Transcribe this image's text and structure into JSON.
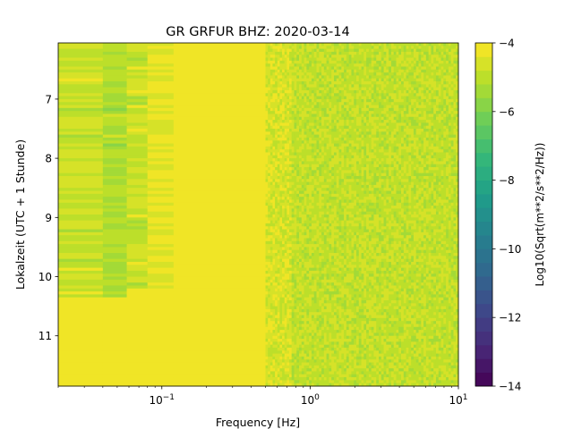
{
  "chart_data": {
    "type": "heatmap",
    "title": "GR GRFUR  BHZ: 2020-03-14",
    "xlabel": "Frequency [Hz]",
    "ylabel": "Lokalzeit (UTC + 1 Stunde)",
    "xscale": "log",
    "xlim": [
      0.02,
      10
    ],
    "ylim": [
      6.05,
      11.85
    ],
    "y_inverted": true,
    "x_ticks": [
      {
        "value": 0.1,
        "base": "10",
        "exp": "−1"
      },
      {
        "value": 1,
        "base": "10",
        "exp": "0"
      },
      {
        "value": 10,
        "base": "10",
        "exp": "1"
      }
    ],
    "y_ticks": [
      {
        "value": 7,
        "label": "7"
      },
      {
        "value": 8,
        "label": "8"
      },
      {
        "value": 9,
        "label": "9"
      },
      {
        "value": 10,
        "label": "10"
      },
      {
        "value": 11,
        "label": "11"
      }
    ],
    "colorbar": {
      "label": "Log10(Sqrt(m**2/s**2/Hz))",
      "range": [
        -14,
        -4
      ],
      "levels": 25,
      "colormap": "viridis",
      "ticks": [
        {
          "value": -4,
          "label": "−4"
        },
        {
          "value": -6,
          "label": "−6"
        },
        {
          "value": -8,
          "label": "−8"
        },
        {
          "value": -10,
          "label": "−10"
        },
        {
          "value": -12,
          "label": "−12"
        },
        {
          "value": -14,
          "label": "−14"
        }
      ]
    },
    "spectrogram_bands": [
      {
        "f_min": 0.02,
        "f_max": 0.04,
        "value_early": -4.8,
        "value_late": -4.0
      },
      {
        "f_min": 0.04,
        "f_max": 0.058,
        "value_early": -5.2,
        "value_late": -4.0
      },
      {
        "f_min": 0.058,
        "f_max": 0.08,
        "value_early": -4.8,
        "value_late": -4.0
      },
      {
        "f_min": 0.08,
        "f_max": 0.12,
        "value_early": -4.3,
        "value_late": -4.0
      },
      {
        "f_min": 0.12,
        "f_max": 0.5,
        "value_early": -4.0,
        "value_late": -4.0
      },
      {
        "f_min": 0.5,
        "f_max": 0.75,
        "value_early": -4.6,
        "value_late": -4.6
      },
      {
        "f_min": 0.75,
        "f_max": 10,
        "value_early": -4.9,
        "value_late": -4.9
      }
    ],
    "transition_time": 10.35
  }
}
